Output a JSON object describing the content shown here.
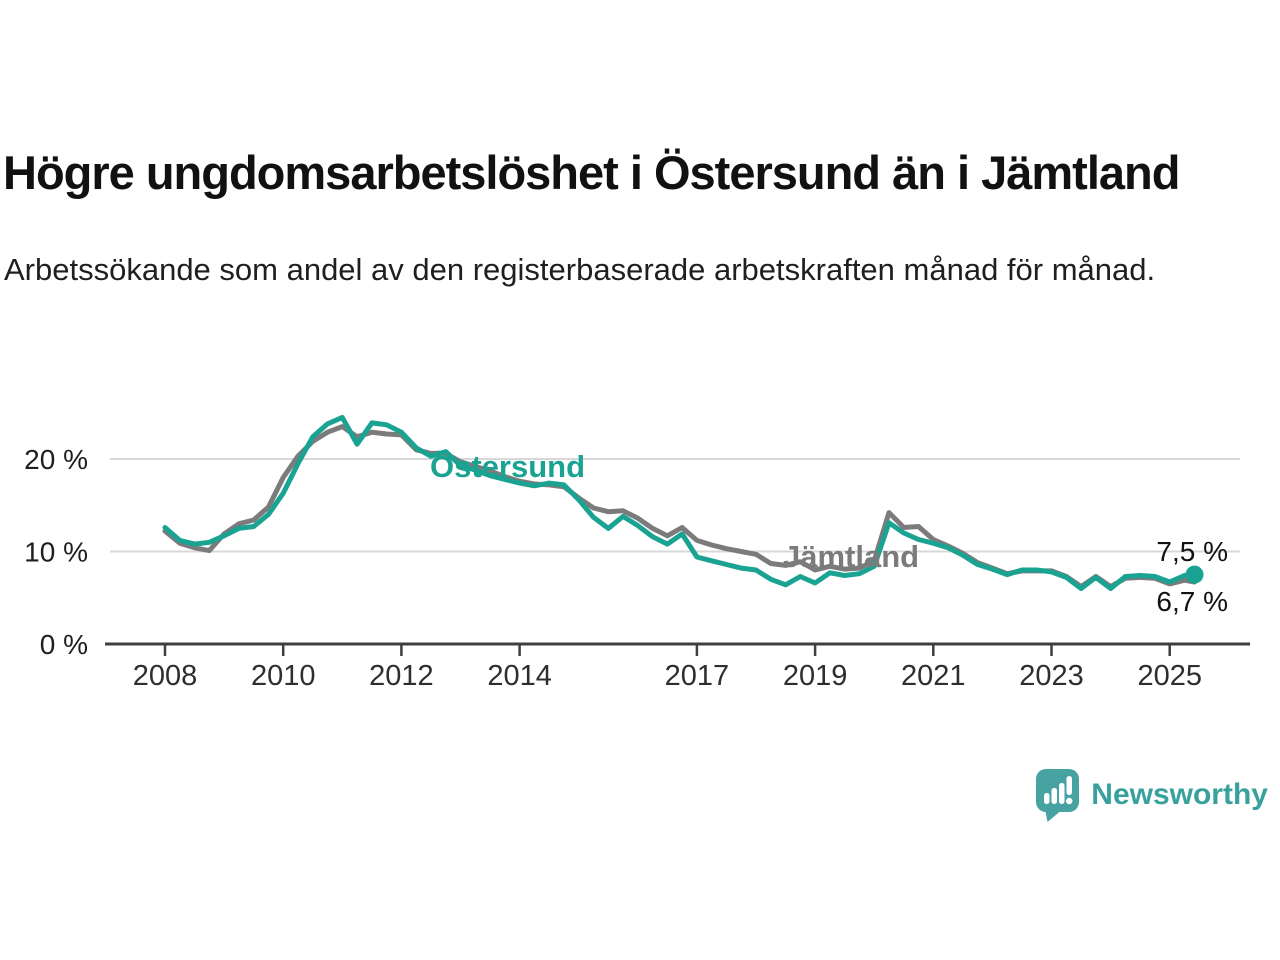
{
  "header": {
    "title": "Högre ungdomsarbetslöshet i Östersund än i Jämtland",
    "subtitle": "Arbetssökande som andel av den registerbaserade arbetskraften månad för månad."
  },
  "chart_data": {
    "type": "line",
    "title": "Högre ungdomsarbetslöshet i Östersund än i Jämtland",
    "xlabel": "",
    "ylabel": "Arbetssökande som andel av den registerbaserade arbetskraften",
    "x_unit": "decimal year (monthly series)",
    "ylim": [
      0,
      26
    ],
    "xlim": [
      2007.9,
      2026.3
    ],
    "grid": true,
    "grid_values": [
      20,
      10
    ],
    "y_ticks": [
      {
        "label": "20 %",
        "value": 20
      },
      {
        "label": "10 %",
        "value": 10
      },
      {
        "label": "0 %",
        "value": 0
      }
    ],
    "x_ticks": [
      {
        "label": "2008",
        "value": 2008
      },
      {
        "label": "2010",
        "value": 2010
      },
      {
        "label": "2012",
        "value": 2012
      },
      {
        "label": "2014",
        "value": 2014
      },
      {
        "label": "2017",
        "value": 2017
      },
      {
        "label": "2019",
        "value": 2019
      },
      {
        "label": "2021",
        "value": 2021
      },
      {
        "label": "2023",
        "value": 2023
      },
      {
        "label": "2025",
        "value": 2025
      }
    ],
    "x": [
      2008,
      2008.25,
      2008.5,
      2008.75,
      2009,
      2009.25,
      2009.5,
      2009.75,
      2010,
      2010.25,
      2010.5,
      2010.75,
      2011,
      2011.25,
      2011.5,
      2011.75,
      2012,
      2012.25,
      2012.5,
      2012.75,
      2013,
      2013.25,
      2013.5,
      2013.75,
      2014,
      2014.25,
      2014.5,
      2014.75,
      2015,
      2015.25,
      2015.5,
      2015.75,
      2016,
      2016.25,
      2016.5,
      2016.75,
      2017,
      2017.25,
      2017.5,
      2017.75,
      2018,
      2018.25,
      2018.5,
      2018.75,
      2019,
      2019.25,
      2019.5,
      2019.75,
      2020,
      2020.25,
      2020.5,
      2020.75,
      2021,
      2021.25,
      2021.5,
      2021.75,
      2022,
      2022.25,
      2022.5,
      2022.75,
      2023,
      2023.25,
      2023.5,
      2023.75,
      2024,
      2024.25,
      2024.5,
      2024.75,
      2025,
      2025.25,
      2025.42
    ],
    "series": [
      {
        "name": "Östersund",
        "color": "#1aa392",
        "end_label": "7,5 %",
        "values": [
          12.6,
          11.2,
          10.8,
          11,
          11.7,
          12.5,
          12.7,
          14,
          16.3,
          19.5,
          22.4,
          23.8,
          24.5,
          21.6,
          23.9,
          23.7,
          22.9,
          21.2,
          20.3,
          20.8,
          19.3,
          18.8,
          18.2,
          17.8,
          17.4,
          17.1,
          17.4,
          17.2,
          15.6,
          13.7,
          12.5,
          13.8,
          12.8,
          11.6,
          10.8,
          11.9,
          9.4,
          9,
          8.6,
          8.2,
          8,
          7,
          6.4,
          7.3,
          6.6,
          7.7,
          7.4,
          7.6,
          8.4,
          13.1,
          12,
          11.3,
          10.9,
          10.4,
          9.6,
          8.6,
          8.1,
          7.5,
          8,
          8,
          7.8,
          7.2,
          6,
          7.2,
          6,
          7.3,
          7.4,
          7.3,
          6.7,
          7.4,
          7.5
        ]
      },
      {
        "name": "Jämtland",
        "color": "#7b7b7b",
        "end_label": "6,7 %",
        "values": [
          12.2,
          10.9,
          10.4,
          10.1,
          11.9,
          13,
          13.4,
          14.8,
          18,
          20.3,
          21.9,
          22.9,
          23.5,
          22.4,
          22.9,
          22.7,
          22.6,
          21,
          20.6,
          20.6,
          19.7,
          19.2,
          18.7,
          18.1,
          17.6,
          17.3,
          17.2,
          17,
          15.8,
          14.7,
          14.3,
          14.4,
          13.6,
          12.5,
          11.7,
          12.6,
          11.2,
          10.7,
          10.3,
          10,
          9.7,
          8.7,
          8.5,
          8.9,
          8,
          8.4,
          8.1,
          8.2,
          9,
          14.2,
          12.6,
          12.7,
          11.3,
          10.6,
          9.8,
          8.8,
          8.2,
          7.6,
          7.9,
          7.9,
          7.9,
          7.3,
          6.2,
          7.3,
          6.2,
          7.1,
          7.2,
          7.1,
          6.5,
          6.9,
          6.7
        ]
      }
    ],
    "legend_position": "inline-labels-on-lines"
  },
  "footer": {
    "brand": "Newsworthy",
    "brand_color": "#38a19d"
  }
}
